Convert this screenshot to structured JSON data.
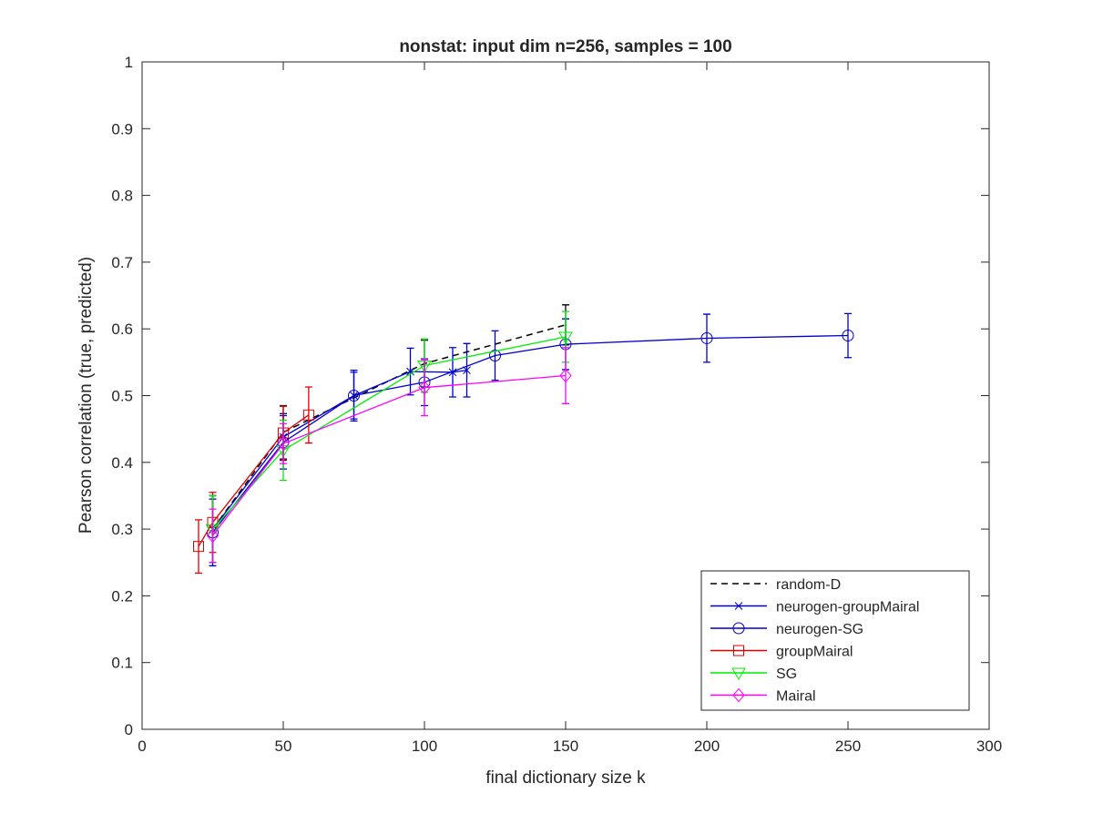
{
  "chart_data": {
    "type": "line",
    "title": "nonstat: input dim n=256, samples = 100",
    "xlabel": "final dictionary size k",
    "ylabel": "Pearson correlation (true, predicted)",
    "xlim": [
      0,
      300
    ],
    "ylim": [
      0,
      1
    ],
    "xticks": [
      "0",
      "50",
      "100",
      "150",
      "200",
      "250",
      "300"
    ],
    "yticks": [
      "0",
      "0.1",
      "0.2",
      "0.3",
      "0.4",
      "0.5",
      "0.6",
      "0.7",
      "0.8",
      "0.9",
      "1"
    ],
    "grid": false,
    "legend_position": "bottom-right",
    "series": [
      {
        "name": "random-D",
        "color": "#000000",
        "dash": "dashed",
        "marker": "none",
        "x": [
          25,
          50,
          100,
          150
        ],
        "y": [
          0.3,
          0.445,
          0.548,
          0.606
        ],
        "err": [
          0.05,
          0.04,
          0.035,
          0.03
        ]
      },
      {
        "name": "neurogen-groupMairal",
        "color": "#0000cc",
        "dash": "solid",
        "marker": "x",
        "x": [
          25,
          50,
          75,
          95,
          110,
          115
        ],
        "y": [
          0.3,
          0.438,
          0.5,
          0.536,
          0.535,
          0.538
        ],
        "err": [
          0.05,
          0.035,
          0.038,
          0.035,
          0.037,
          0.04
        ]
      },
      {
        "name": "neurogen-SG",
        "color": "#0000cc",
        "dash": "solid",
        "marker": "circle",
        "x": [
          25,
          50,
          75,
          100,
          125,
          150,
          200,
          250
        ],
        "y": [
          0.295,
          0.43,
          0.5,
          0.52,
          0.56,
          0.577,
          0.586,
          0.59
        ],
        "err": [
          0.05,
          0.04,
          0.035,
          0.035,
          0.037,
          0.038,
          0.036,
          0.033
        ]
      },
      {
        "name": "groupMairal",
        "color": "#e00000",
        "dash": "solid",
        "marker": "square",
        "x": [
          20,
          25,
          50,
          59
        ],
        "y": [
          0.274,
          0.31,
          0.444,
          0.471
        ],
        "err": [
          0.04,
          0.045,
          0.04,
          0.042
        ]
      },
      {
        "name": "SG",
        "color": "#00ee00",
        "dash": "solid",
        "marker": "triangle-down",
        "x": [
          25,
          50,
          100,
          150
        ],
        "y": [
          0.3,
          0.418,
          0.545,
          0.588
        ],
        "err": [
          0.05,
          0.045,
          0.04,
          0.038
        ]
      },
      {
        "name": "Mairal",
        "color": "#ff00ff",
        "dash": "solid",
        "marker": "diamond",
        "x": [
          25,
          50,
          100,
          150
        ],
        "y": [
          0.29,
          0.428,
          0.512,
          0.53
        ],
        "err": [
          0.04,
          0.03,
          0.042,
          0.042
        ]
      }
    ]
  }
}
